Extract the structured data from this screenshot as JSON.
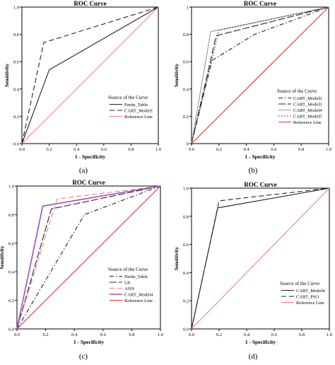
{
  "chart_data": [
    {
      "type": "line",
      "panel_label": "(a)",
      "title": "ROC Curve",
      "xlabel": "1 - Specificity",
      "ylabel": "Sensitivity",
      "xlim": [
        0,
        1
      ],
      "ylim": [
        0,
        1
      ],
      "xticks": [
        "0.0",
        "0.2",
        "0.4",
        "0.6",
        "0.8",
        "1.0"
      ],
      "yticks": [
        "0.0",
        "0.2",
        "0.4",
        "0.6",
        "0.8",
        "1.0"
      ],
      "legend_title": "Source of the Curve",
      "legend_position": "bottom-right",
      "grid": false,
      "series": [
        {
          "name": "Partin_Table",
          "color": "#222222",
          "dash": "solid",
          "x": [
            0,
            0.2,
            1
          ],
          "y": [
            0,
            0.54,
            1
          ]
        },
        {
          "name": "CART_Model1",
          "color": "#222222",
          "dash": "dashed",
          "x": [
            0,
            0.16,
            1
          ],
          "y": [
            0,
            0.74,
            1
          ]
        },
        {
          "name": "Reference Line",
          "color": "#f08080",
          "dash": "solid",
          "x": [
            0,
            1
          ],
          "y": [
            0,
            1
          ]
        }
      ]
    },
    {
      "type": "line",
      "panel_label": "(b)",
      "title": "ROC Curve",
      "xlabel": "1 - Specificity",
      "ylabel": "Sensitivity",
      "xlim": [
        0,
        1
      ],
      "ylim": [
        0,
        1
      ],
      "xticks": [
        "0.0",
        "0.2",
        "0.4",
        "0.6",
        "0.8",
        "1.0"
      ],
      "yticks": [
        "0",
        "0.2",
        "0.4",
        "0.6",
        "0.8",
        "1"
      ],
      "legend_title": "Source of the Curve",
      "legend_position": "bottom-right",
      "grid": false,
      "series": [
        {
          "name": "CART_Model2",
          "color": "#222222",
          "dash": "dashdot",
          "x": [
            0,
            0.15,
            0.46,
            1
          ],
          "y": [
            0,
            0.61,
            0.8,
            1
          ]
        },
        {
          "name": "CART_Model3",
          "color": "#222222",
          "dash": "longdash",
          "x": [
            0,
            0.18,
            1
          ],
          "y": [
            0,
            0.79,
            1
          ]
        },
        {
          "name": "CART_Model4",
          "color": "#999999",
          "dash": "solid",
          "x": [
            0,
            0.14,
            1
          ],
          "y": [
            0,
            0.82,
            1
          ]
        },
        {
          "name": "CART_Model5",
          "color": "#222222",
          "dash": "dotted",
          "x": [
            0,
            0.2,
            1
          ],
          "y": [
            0,
            0.83,
            1
          ]
        },
        {
          "name": "Reference Line",
          "color": "#e03030",
          "dash": "solid",
          "x": [
            0,
            1
          ],
          "y": [
            0,
            1
          ]
        }
      ]
    },
    {
      "type": "line",
      "panel_label": "(c)",
      "title": "ROC Curve",
      "xlabel": "1 - Specificity",
      "ylabel": "Sensitivity",
      "xlim": [
        0,
        1
      ],
      "ylim": [
        0,
        1
      ],
      "xticks": [
        "0.0",
        "0.2",
        "0.4",
        "0.6",
        "0.8",
        "1.0"
      ],
      "yticks": [
        "0.0",
        "0.2",
        "0.4",
        "0.6",
        "0.8",
        "1.0"
      ],
      "legend_title": "Source of the Curve",
      "legend_position": "bottom-right",
      "grid": false,
      "series": [
        {
          "name": "Partin_Table",
          "color": "#222222",
          "dash": "dashdot",
          "x": [
            0,
            0.47,
            1
          ],
          "y": [
            0,
            0.8,
            1
          ]
        },
        {
          "name": "LR",
          "color": "#222222",
          "dash": "longdash",
          "x": [
            0,
            0.24,
            1
          ],
          "y": [
            0,
            0.84,
            1
          ]
        },
        {
          "name": "ANN",
          "color": "#f08080",
          "dash": "dashed",
          "x": [
            0,
            0.28,
            1
          ],
          "y": [
            0,
            0.91,
            1
          ]
        },
        {
          "name": "CART_Model4",
          "color": "#9b4fc4",
          "dash": "solid",
          "x": [
            0,
            0.18,
            1
          ],
          "y": [
            0,
            0.86,
            1
          ]
        },
        {
          "name": "Reference Line",
          "color": "#e03030",
          "dash": "solid",
          "x": [
            0,
            1
          ],
          "y": [
            0,
            1
          ]
        }
      ]
    },
    {
      "type": "line",
      "panel_label": "(d)",
      "title": "ROC Curve",
      "xlabel": "1 - Specificity",
      "ylabel": "Sensitivity",
      "xlim": [
        0,
        1
      ],
      "ylim": [
        0,
        1
      ],
      "xticks": [
        "0.0",
        "0.2",
        "0.4",
        "0.6",
        "0.8",
        "1.0"
      ],
      "yticks": [
        "0.0",
        "0.2",
        "0.4",
        "0.6",
        "0.8",
        "1.0"
      ],
      "legend_title": "Source of the Curve",
      "legend_position": "bottom-right",
      "grid": false,
      "series": [
        {
          "name": "CART_Model4",
          "color": "#222222",
          "dash": "solid",
          "x": [
            0,
            0.19,
            1
          ],
          "y": [
            0,
            0.86,
            1
          ]
        },
        {
          "name": "CART_PSO",
          "color": "#222222",
          "dash": "dashed",
          "x": [
            0,
            0.2,
            1
          ],
          "y": [
            0,
            0.91,
            1
          ]
        },
        {
          "name": "Reference Line",
          "color": "#f08080",
          "dash": "solid",
          "x": [
            0,
            1
          ],
          "y": [
            0,
            1
          ]
        }
      ]
    }
  ]
}
